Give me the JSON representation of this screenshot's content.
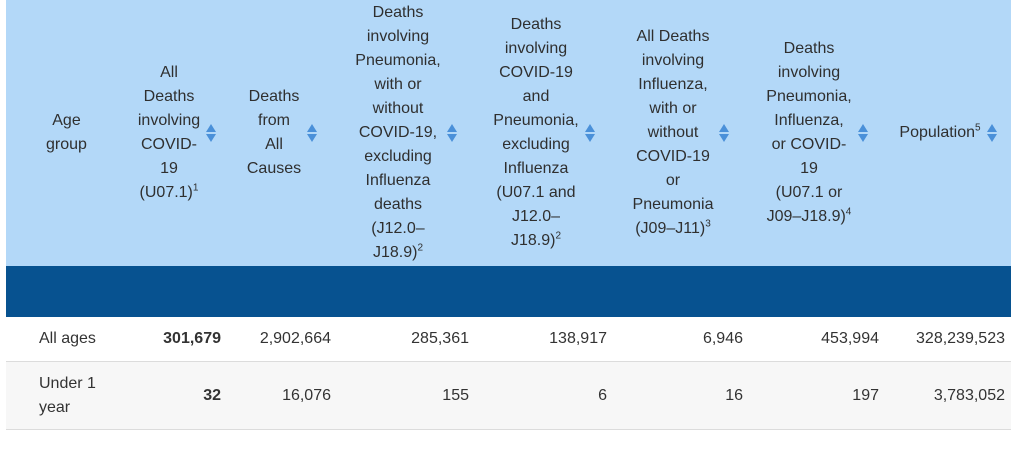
{
  "table": {
    "headers": [
      {
        "lines": [
          "Age",
          "group"
        ],
        "sup": "",
        "sortable": false
      },
      {
        "lines": [
          "All",
          "Deaths",
          "involving",
          "COVID-",
          "19",
          "(U07.1)"
        ],
        "sup": "1",
        "sortable": true
      },
      {
        "lines": [
          "Deaths",
          "from",
          "All",
          "Causes"
        ],
        "sup": "",
        "sortable": true
      },
      {
        "lines": [
          "Deaths",
          "involving",
          "Pneumonia,",
          "with or",
          "without",
          "COVID-19,",
          "excluding",
          "Influenza",
          "deaths",
          "(J12.0–",
          "J18.9)"
        ],
        "sup": "2",
        "sortable": true
      },
      {
        "lines": [
          "Deaths",
          "involving",
          "COVID-19",
          "and",
          "Pneumonia,",
          "excluding",
          "Influenza",
          "(U07.1 and",
          "J12.0–",
          "J18.9)"
        ],
        "sup": "2",
        "sortable": true
      },
      {
        "lines": [
          "All Deaths",
          "involving",
          "Influenza,",
          "with or",
          "without",
          "COVID-19",
          "or",
          "Pneumonia",
          "(J09–J11)"
        ],
        "sup": "3",
        "sortable": true
      },
      {
        "lines": [
          "Deaths",
          "involving",
          "Pneumonia,",
          "Influenza,",
          "or COVID-",
          "19",
          "(U07.1 or",
          "J09–J18.9)"
        ],
        "sup": "4",
        "sortable": true
      },
      {
        "lines": [
          "Population"
        ],
        "sup": "5",
        "sortable": true
      }
    ],
    "rows": [
      {
        "age_group": "All ages",
        "covid": "301,679",
        "all_causes": "2,902,664",
        "pneumonia": "285,361",
        "covid_pneumonia": "138,917",
        "influenza": "6,946",
        "pic": "453,994",
        "population": "328,239,523"
      },
      {
        "age_group": "Under 1 year",
        "covid": "32",
        "all_causes": "16,076",
        "pneumonia": "155",
        "covid_pneumonia": "6",
        "influenza": "16",
        "pic": "197",
        "population": "3,783,052"
      }
    ],
    "colors": {
      "header_bg": "#b3d8f8",
      "band_bg": "#075290",
      "sort_arrow": "#4a90d9",
      "alt_row_bg": "#f7f7f7"
    },
    "icons": {
      "sort": "sort-updown-icon"
    }
  }
}
